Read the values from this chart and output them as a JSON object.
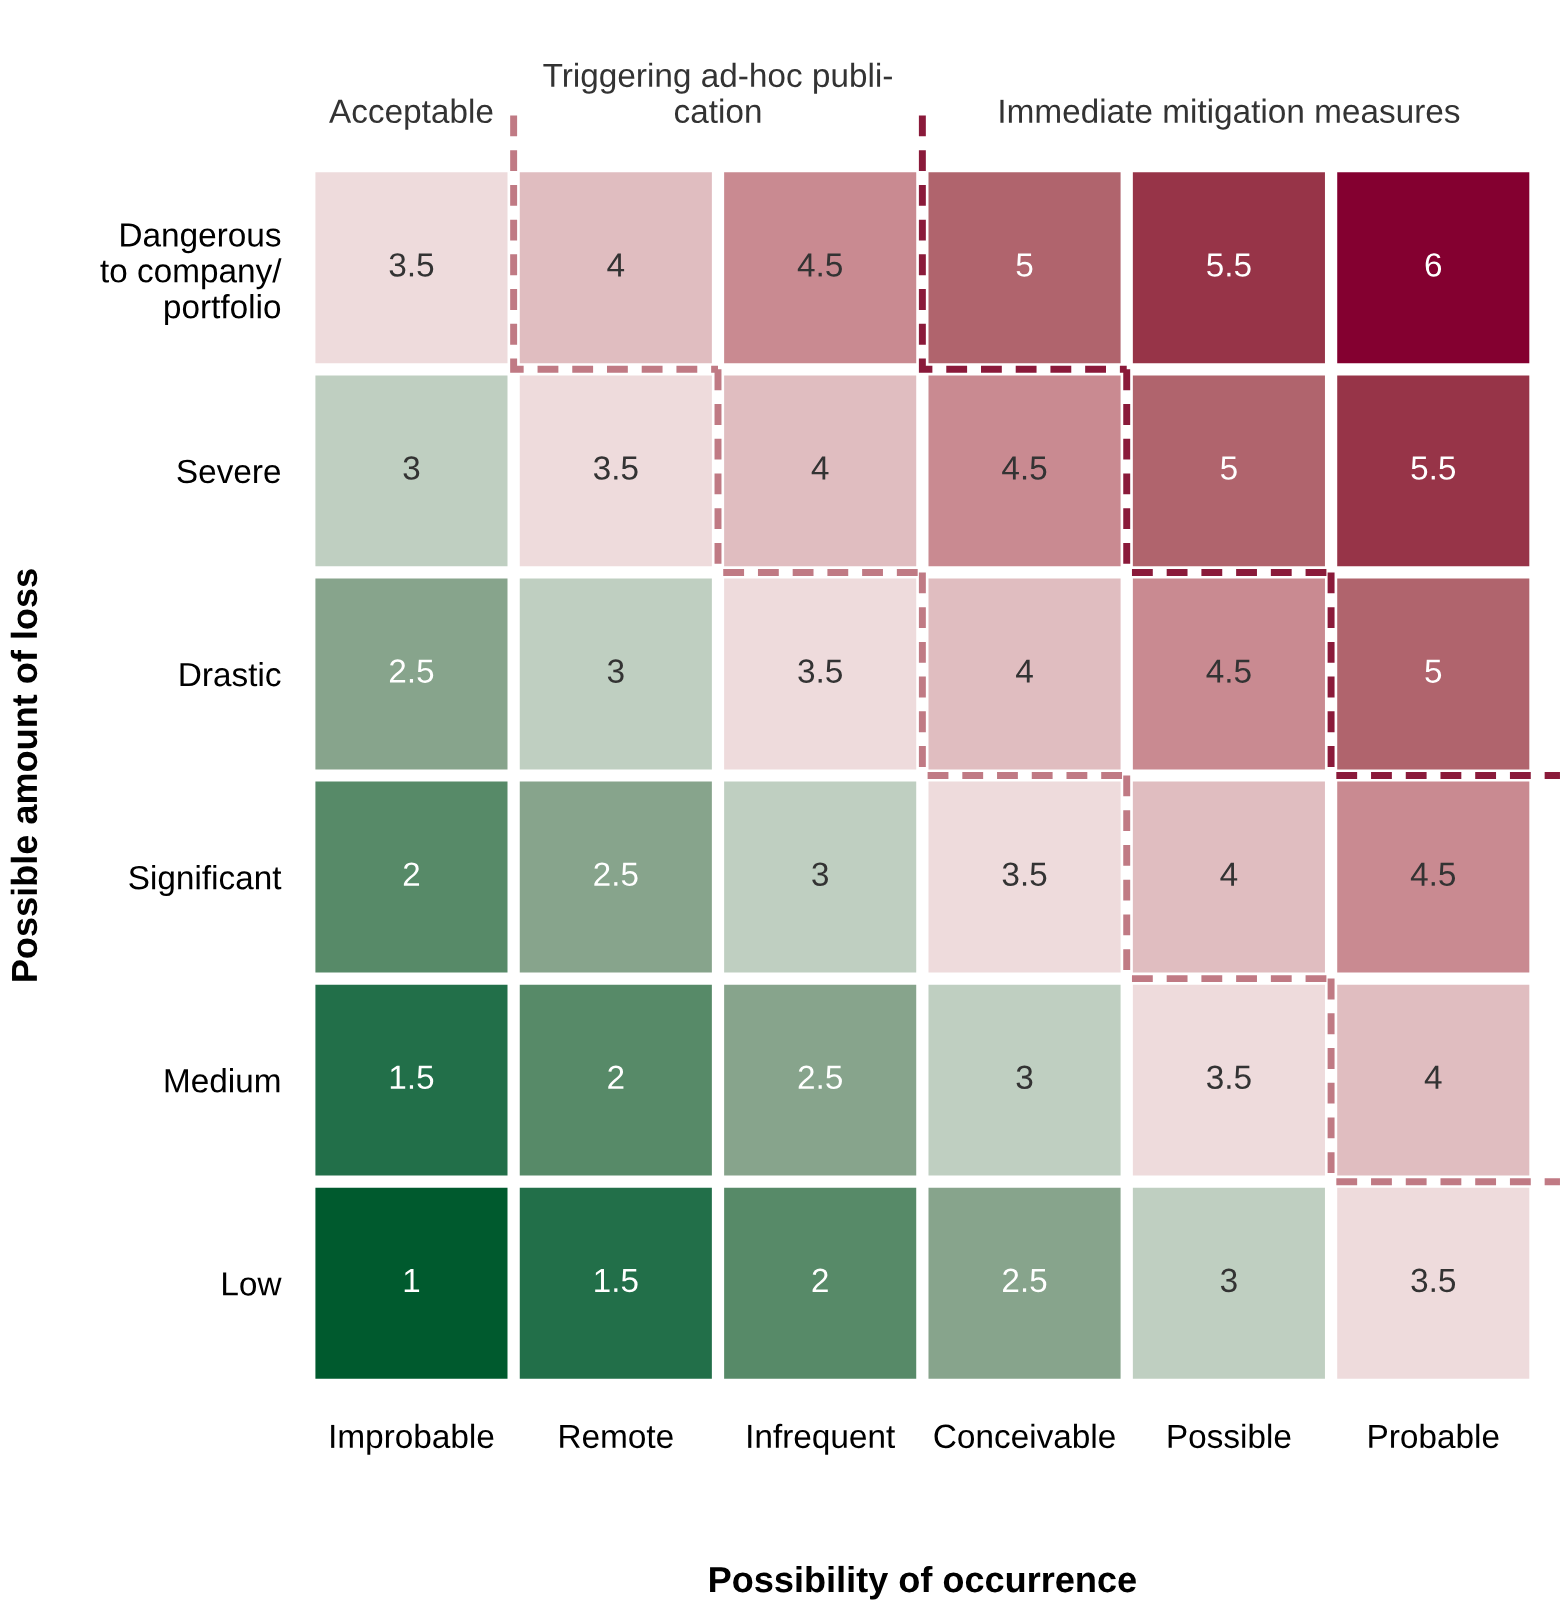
{
  "chart_data": {
    "type": "heatmap",
    "xlabel": "Possibility of occurrence",
    "ylabel": "Possible amount of loss",
    "categories": [
      "Improbable",
      "Remote",
      "Infrequent",
      "Conceivable",
      "Possible",
      "Probable"
    ],
    "y_categories": [
      "Dangerous\nto company/\nportfolio",
      "Severe",
      "Drastic",
      "Significant",
      "Medium",
      "Low"
    ],
    "cells": [
      [
        3.5,
        4,
        4.5,
        5,
        5.5,
        6
      ],
      [
        3,
        3.5,
        4,
        4.5,
        5,
        5.5
      ],
      [
        2.5,
        3,
        3.5,
        4,
        4.5,
        5
      ],
      [
        2,
        2.5,
        3,
        3.5,
        4,
        4.5
      ],
      [
        1.5,
        2,
        2.5,
        3,
        3.5,
        4
      ],
      [
        1,
        1.5,
        2,
        2.5,
        3,
        3.5
      ]
    ],
    "data_labels": true,
    "grid": false,
    "annotations": [
      "Acceptable",
      "Triggering ad-hoc publi-\ncation",
      "Immediate mitigation measures"
    ]
  }
}
